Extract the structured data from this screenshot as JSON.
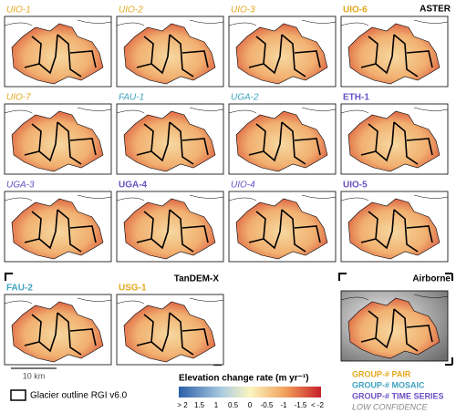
{
  "sections": {
    "aster": "ASTER",
    "tandem": "TanDEM-X",
    "airborne": "Airborne"
  },
  "groups": [
    {
      "label": "GROUP-# PAIR",
      "color": "#e3a81c"
    },
    {
      "label": "GROUP-# MOSAIC",
      "color": "#3fa3bf"
    },
    {
      "label": "GROUP-# TIME SERIES",
      "color": "#6a4fc4"
    }
  ],
  "low_confidence": {
    "label": "LOW CONFIDENCE",
    "color": "#888888"
  },
  "panels": [
    {
      "label": "UIO-1",
      "group": 0,
      "low": true
    },
    {
      "label": "UIO-2",
      "group": 0,
      "low": true
    },
    {
      "label": "UIO-3",
      "group": 0,
      "low": true
    },
    {
      "label": "UIO-6",
      "group": 0,
      "low": false
    },
    {
      "label": "UIO-7",
      "group": 0,
      "low": true
    },
    {
      "label": "FAU-1",
      "group": 1,
      "low": true
    },
    {
      "label": "UGA-2",
      "group": 1,
      "low": true
    },
    {
      "label": "ETH-1",
      "group": 2,
      "low": false
    },
    {
      "label": "UGA-3",
      "group": 2,
      "low": true
    },
    {
      "label": "UGA-4",
      "group": 2,
      "low": false
    },
    {
      "label": "UIO-4",
      "group": 2,
      "low": true
    },
    {
      "label": "UIO-5",
      "group": 2,
      "low": false
    },
    {
      "label": "FAU-2",
      "group": 1,
      "low": false
    },
    {
      "label": "USG-1",
      "group": 0,
      "low": false
    }
  ],
  "scale_bar": "10 km",
  "outline_legend": "Glacier outline RGI v6.0",
  "colorbar": {
    "title": "Elevation change rate (m yr⁻¹)",
    "labels": [
      "> 2",
      "1.5",
      "1",
      "0.5",
      "0",
      "-0.5",
      "-1",
      "-1.5",
      "< -2"
    ]
  }
}
